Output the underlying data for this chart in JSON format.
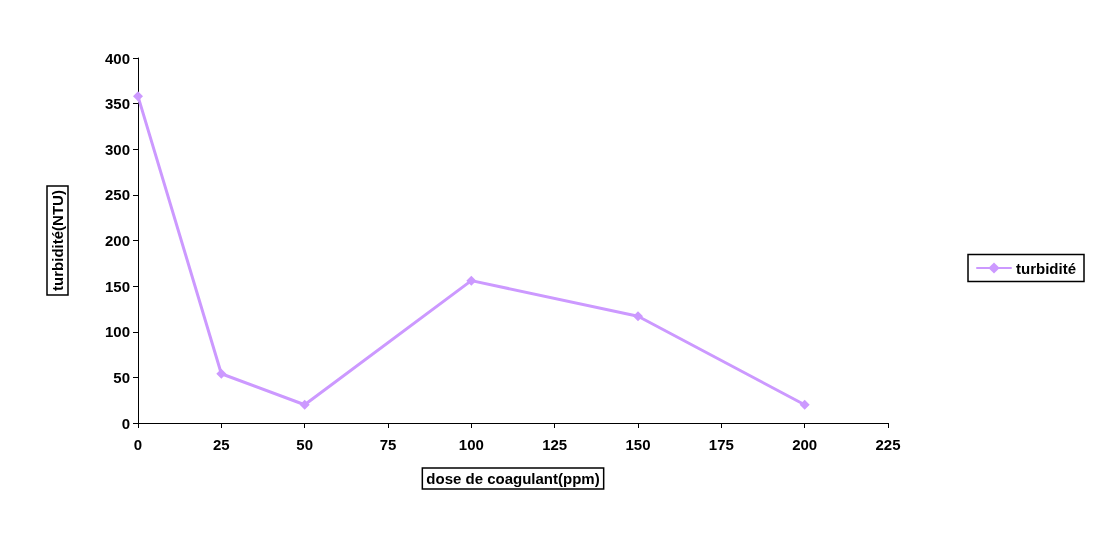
{
  "chart_data": {
    "type": "line",
    "xlabel": "dose de coagulant(ppm)",
    "ylabel": "turbidité(NTU)",
    "x": [
      0,
      25,
      50,
      100,
      150,
      200
    ],
    "series": [
      {
        "name": "turbidité",
        "color": "#cc99ff",
        "values": [
          358,
          54,
          20,
          156,
          117,
          20
        ]
      }
    ],
    "xlim": [
      0,
      225
    ],
    "xticks": [
      0,
      25,
      50,
      75,
      100,
      125,
      150,
      175,
      200,
      225
    ],
    "ylim": [
      0,
      400
    ],
    "yticks": [
      0,
      50,
      100,
      150,
      200,
      250,
      300,
      350,
      400
    ],
    "grid": false,
    "legend": "right",
    "marker": "diamond",
    "line_style": "solid"
  }
}
